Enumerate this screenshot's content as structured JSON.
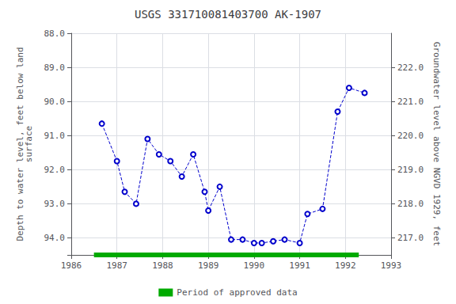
{
  "chart_data": {
    "type": "line",
    "title": "USGS 331710081403700 AK-1907",
    "ylabel": "Depth to water level, feet below land\nsurface",
    "y2label": "Groundwater level above NGVD 1929, feet",
    "x": [
      1986.67,
      1987.0,
      1987.17,
      1987.42,
      1987.67,
      1987.92,
      1988.17,
      1988.42,
      1988.67,
      1988.92,
      1989.0,
      1989.25,
      1989.5,
      1989.75,
      1990.0,
      1990.17,
      1990.42,
      1990.67,
      1991.0,
      1991.17,
      1991.5,
      1991.83,
      1992.08,
      1992.42
    ],
    "values": [
      90.65,
      91.75,
      92.65,
      93.0,
      91.1,
      91.55,
      91.75,
      92.2,
      91.55,
      92.65,
      93.2,
      92.5,
      94.05,
      94.05,
      94.15,
      94.15,
      94.1,
      94.05,
      94.15,
      93.3,
      93.15,
      90.3,
      89.6,
      89.75
    ],
    "color": "#0000cc",
    "marker": "circle",
    "line_style": "dashed",
    "xlim": [
      1986.0,
      1993.0
    ],
    "xticks": [
      1986,
      1987,
      1988,
      1989,
      1990,
      1991,
      1992,
      1993
    ],
    "ylim": [
      94.5,
      88.0
    ],
    "yticks": [
      {
        "value": 88.0,
        "label": "88.0"
      },
      {
        "value": 89.0,
        "label": "89.0"
      },
      {
        "value": 90.0,
        "label": "90.0"
      },
      {
        "value": 91.0,
        "label": "91.0"
      },
      {
        "value": 92.0,
        "label": "92.0"
      },
      {
        "value": 93.0,
        "label": "93.0"
      },
      {
        "value": 94.0,
        "label": "94.0"
      }
    ],
    "y2lim": [
      216.5,
      223.0
    ],
    "y2ticks": [
      {
        "value": 217.0,
        "label": "217.0"
      },
      {
        "value": 218.0,
        "label": "218.0"
      },
      {
        "value": 219.0,
        "label": "219.0"
      },
      {
        "value": 220.0,
        "label": "220.0"
      },
      {
        "value": 221.0,
        "label": "221.0"
      },
      {
        "value": 222.0,
        "label": "222.0"
      }
    ],
    "grid": true,
    "legend": "bottom",
    "approved_period": {
      "name": "Period of approved data",
      "color": "#00aa00",
      "x": [
        1986.497,
        1992.293
      ]
    }
  }
}
